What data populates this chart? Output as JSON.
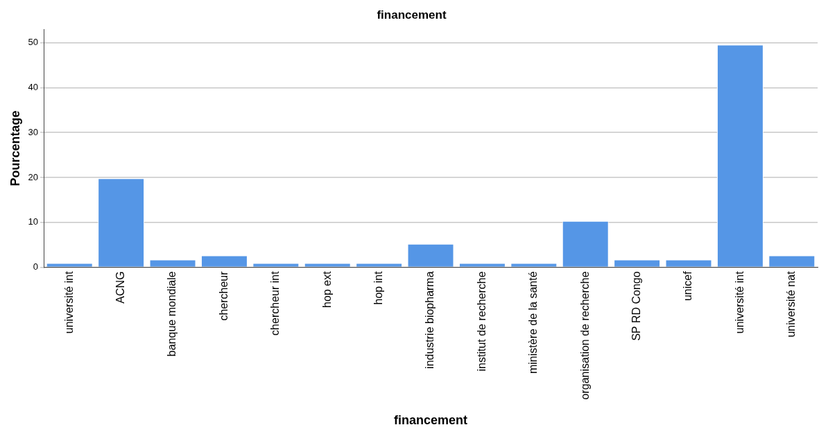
{
  "chart_data": {
    "type": "bar",
    "title": "financement",
    "xlabel": "financement",
    "ylabel": "Pourcentage",
    "categories": [
      "université int",
      "ACNG",
      "banque mondiale",
      "chercheur",
      "chercheur int",
      "hop ext",
      "hop int",
      "industrie biopharma",
      "institut de recherche",
      "ministère de la santé",
      "organisation de recherche",
      "SP RD Congo",
      "unicef",
      "université int",
      "université nat"
    ],
    "values": [
      0.9,
      19.8,
      1.7,
      2.6,
      0.9,
      0.9,
      0.9,
      5.2,
      0.9,
      0.9,
      10.3,
      1.7,
      1.7,
      49.6,
      2.6
    ],
    "color": "#5596e6",
    "ylim": [
      0,
      53
    ],
    "yticks": [
      0,
      10,
      20,
      30,
      40,
      50
    ],
    "grid": "y",
    "legend": false
  }
}
